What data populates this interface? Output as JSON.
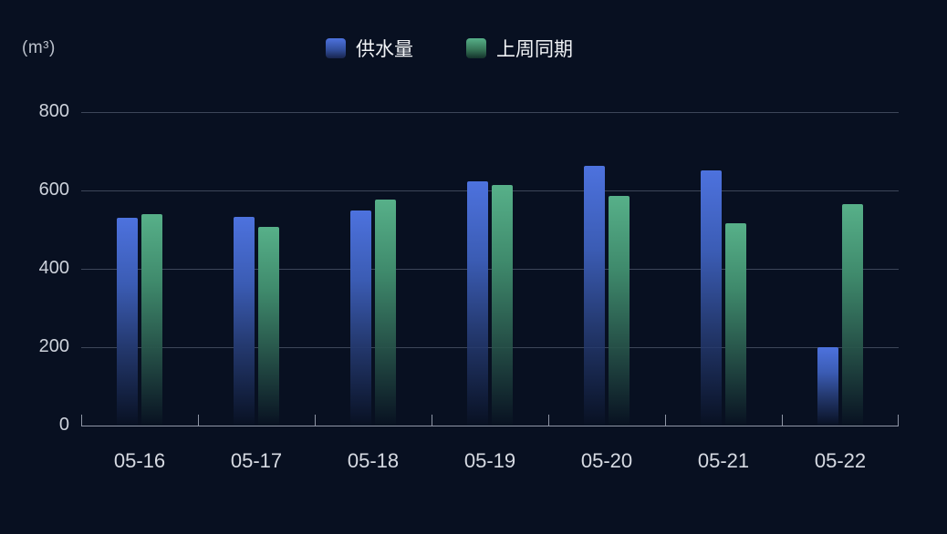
{
  "chart": {
    "unit": "(m³)",
    "background": "#081021"
  },
  "chart_data": {
    "type": "bar",
    "title": "",
    "categories": [
      "05-16",
      "05-17",
      "05-18",
      "05-19",
      "05-20",
      "05-21",
      "05-22"
    ],
    "series": [
      {
        "name": "供水量",
        "color": "#4d72de",
        "values": [
          530,
          532,
          548,
          624,
          662,
          652,
          200
        ]
      },
      {
        "name": "上周同期",
        "color": "#57b089",
        "values": [
          539,
          508,
          576,
          614,
          587,
          517,
          565
        ]
      }
    ],
    "xlabel": "",
    "ylabel": "(m³)",
    "ylim": [
      0,
      800
    ],
    "yticks": [
      0,
      200,
      400,
      600,
      800
    ],
    "grid": true,
    "legend_position": "top-center"
  }
}
